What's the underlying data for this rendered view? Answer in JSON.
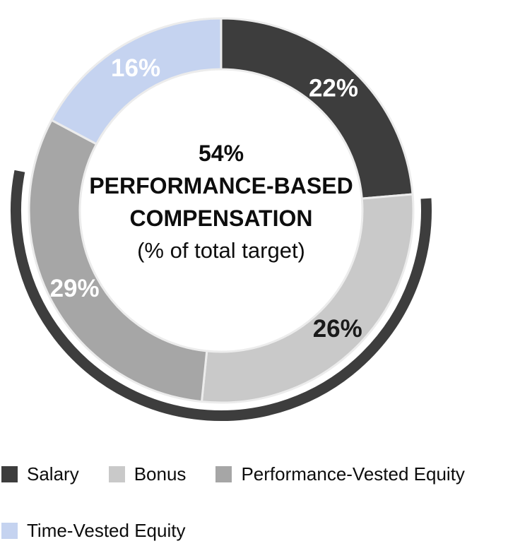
{
  "chart_data": {
    "type": "pie",
    "subtype": "donut",
    "center": {
      "lines": [
        "54%",
        "PERFORMANCE-BASED",
        "COMPENSATION",
        "(% of total target)"
      ]
    },
    "segments": [
      {
        "label": "Salary",
        "value": 22,
        "display": "22%",
        "color": "#3D3D3D",
        "label_color": "#FFFFFF"
      },
      {
        "label": "Bonus",
        "value": 26,
        "display": "26%",
        "color": "#C9C9C9",
        "label_color": "#1A1A1A"
      },
      {
        "label": "Performance-Vested Equity",
        "value": 29,
        "display": "29%",
        "color": "#A6A6A6",
        "label_color": "#FFFFFF"
      },
      {
        "label": "Time-Vested Equity",
        "value": 16,
        "display": "16%",
        "color": "#C5D3F0",
        "label_color": "#FFFFFF"
      }
    ],
    "outer_arc": {
      "percent": 54,
      "color": "#3D3D3D"
    },
    "legend_rows": [
      [
        "Salary",
        "Bonus",
        "Performance-Vested Equity"
      ],
      [
        "Time-Vested Equity"
      ]
    ],
    "colors": {
      "background": "#FFFFFF",
      "divider": "#ECECEC",
      "text": "#0D0D0D"
    },
    "layout": {
      "legend_position": "bottom",
      "start_angle_deg": 0,
      "direction": "clockwise"
    }
  }
}
